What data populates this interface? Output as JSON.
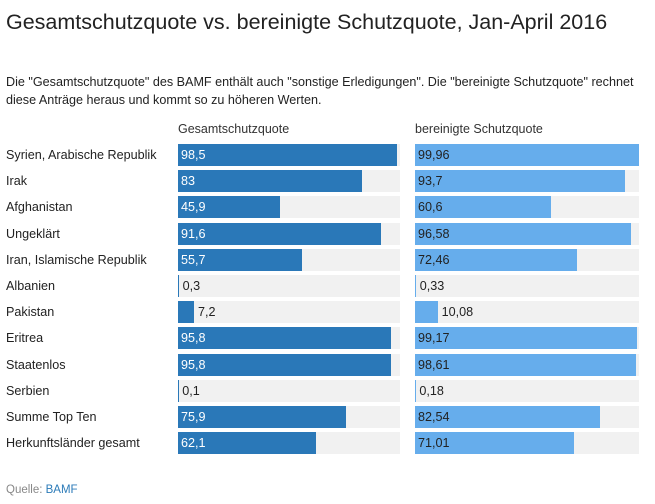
{
  "title": "Gesamtschutzquote vs. bereinigte Schutzquote, Jan-April 2016",
  "subtitle": "Die \"Gesamtschutzquote\" des BAMF enthält auch \"sonstige Erledigungen\". Die \"bereinigte Schutzquote\" rechnet diese Anträge heraus und kommt so zu höheren Werten.",
  "source": {
    "label": "Quelle:",
    "link_text": "BAMF"
  },
  "colors": {
    "series1": "#2a78b8",
    "series2": "#66adec",
    "track": "#f1f1f1"
  },
  "chart_data": {
    "type": "bar",
    "orientation": "horizontal",
    "title": "Gesamtschutzquote vs. bereinigte Schutzquote, Jan-April 2016",
    "xlim": [
      0,
      100
    ],
    "categories": [
      "Syrien, Arabische Republik",
      "Irak",
      "Afghanistan",
      "Ungeklärt",
      "Iran, Islamische Republik",
      "Albanien",
      "Pakistan",
      "Eritrea",
      "Staatenlos",
      "Serbien",
      "Summe Top Ten",
      "Herkunftsländer gesamt"
    ],
    "series": [
      {
        "name": "Gesamtschutzquote",
        "values": [
          98.5,
          83,
          45.9,
          91.6,
          55.7,
          0.3,
          7.2,
          95.8,
          95.8,
          0.1,
          75.9,
          62.1
        ],
        "labels": [
          "98,5",
          "83",
          "45,9",
          "91,6",
          "55,7",
          "0,3",
          "7,2",
          "95,8",
          "95,8",
          "0,1",
          "75,9",
          "62,1"
        ]
      },
      {
        "name": "bereinigte Schutzquote",
        "values": [
          99.96,
          93.7,
          60.6,
          96.58,
          72.46,
          0.33,
          10.08,
          99.17,
          98.61,
          0.18,
          82.54,
          71.01
        ],
        "labels": [
          "99,96",
          "93,7",
          "60,6",
          "96,58",
          "72,46",
          "0,33",
          "10,08",
          "99,17",
          "98,61",
          "0,18",
          "82,54",
          "71,01"
        ]
      }
    ]
  }
}
